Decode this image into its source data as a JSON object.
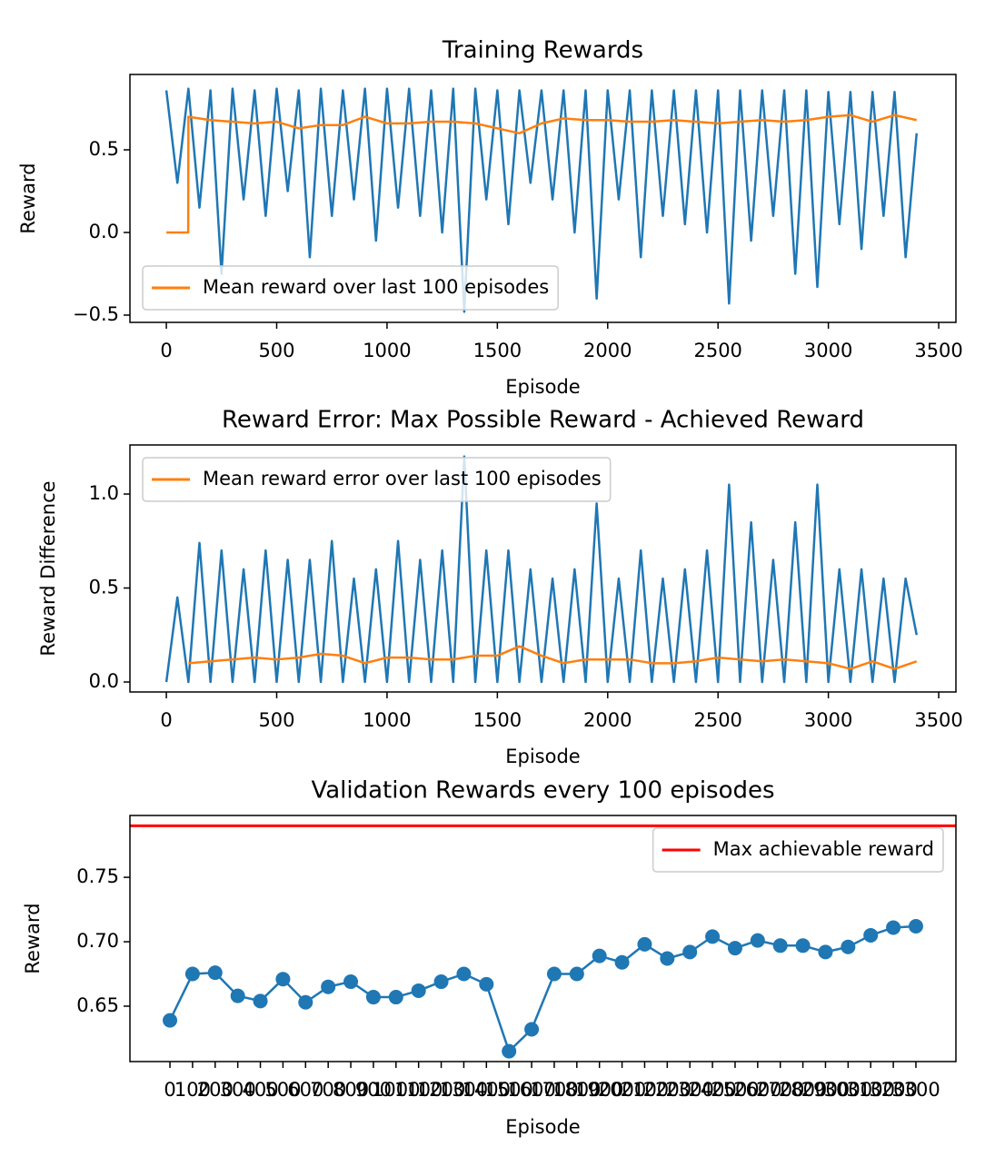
{
  "chart_data": [
    {
      "type": "line",
      "title": "Training Rewards",
      "xlabel": "Episode",
      "ylabel": "Reward",
      "xlim": [
        -165,
        3578
      ],
      "xticks": [
        0,
        500,
        1000,
        1500,
        2000,
        2500,
        3000,
        3500
      ],
      "ylim": [
        -0.544,
        0.956
      ],
      "yticks": [
        {
          "value": -0.5,
          "label": "−0.5"
        },
        {
          "value": 0,
          "label": "0.0"
        },
        0.5
      ],
      "legend": "lower left",
      "series": [
        {
          "color": "#1f77b4",
          "x": [
            0,
            50,
            100,
            150,
            200,
            250,
            300,
            350,
            400,
            450,
            500,
            550,
            600,
            650,
            700,
            750,
            800,
            850,
            900,
            950,
            1000,
            1050,
            1100,
            1150,
            1200,
            1250,
            1300,
            1350,
            1400,
            1450,
            1500,
            1550,
            1600,
            1650,
            1700,
            1750,
            1800,
            1850,
            1900,
            1950,
            2000,
            2050,
            2100,
            2150,
            2200,
            2250,
            2300,
            2350,
            2400,
            2450,
            2500,
            2550,
            2600,
            2650,
            2700,
            2750,
            2800,
            2850,
            2900,
            2950,
            3000,
            3050,
            3100,
            3150,
            3200,
            3250,
            3300,
            3350,
            3400
          ],
          "values": [
            0.86,
            0.3,
            0.87,
            0.15,
            0.86,
            -0.25,
            0.87,
            0.2,
            0.86,
            0.1,
            0.87,
            0.25,
            0.86,
            -0.15,
            0.87,
            0.1,
            0.86,
            0.2,
            0.87,
            -0.05,
            0.87,
            0.15,
            0.87,
            0.1,
            0.86,
            0.0,
            0.87,
            -0.48,
            0.87,
            0.2,
            0.86,
            0.05,
            0.86,
            0.3,
            0.86,
            0.2,
            0.86,
            0.0,
            0.86,
            -0.4,
            0.86,
            0.2,
            0.86,
            -0.15,
            0.86,
            0.1,
            0.86,
            0.05,
            0.86,
            0.0,
            0.86,
            -0.43,
            0.86,
            -0.05,
            0.86,
            0.1,
            0.86,
            -0.25,
            0.86,
            -0.33,
            0.85,
            0.05,
            0.85,
            -0.1,
            0.85,
            0.1,
            0.85,
            -0.15,
            0.6
          ]
        },
        {
          "name": "Mean reward over last 100 episodes",
          "color": "#ff7f0e",
          "x": [
            0,
            99,
            100,
            200,
            300,
            400,
            500,
            600,
            700,
            800,
            900,
            1000,
            1100,
            1200,
            1300,
            1400,
            1500,
            1600,
            1700,
            1800,
            1900,
            2000,
            2100,
            2200,
            2300,
            2400,
            2500,
            2600,
            2700,
            2800,
            2900,
            3000,
            3100,
            3200,
            3300,
            3400
          ],
          "values": [
            0,
            0,
            0.7,
            0.68,
            0.67,
            0.66,
            0.67,
            0.63,
            0.65,
            0.65,
            0.7,
            0.66,
            0.66,
            0.67,
            0.67,
            0.66,
            0.63,
            0.6,
            0.66,
            0.69,
            0.68,
            0.68,
            0.67,
            0.67,
            0.68,
            0.67,
            0.66,
            0.67,
            0.68,
            0.67,
            0.68,
            0.7,
            0.71,
            0.67,
            0.71,
            0.68
          ]
        }
      ]
    },
    {
      "type": "line",
      "title": "Reward Error: Max Possible Reward - Achieved Reward",
      "xlabel": "Episode",
      "ylabel": "Reward Difference",
      "xlim": [
        -165,
        3578
      ],
      "xticks": [
        0,
        500,
        1000,
        1500,
        2000,
        2500,
        3000,
        3500
      ],
      "ylim": [
        -0.053,
        1.261
      ],
      "yticks": [
        {
          "value": 0,
          "label": "0.0"
        },
        0.5,
        {
          "value": 1,
          "label": "1.0"
        }
      ],
      "legend": "upper left",
      "series": [
        {
          "color": "#1f77b4",
          "x": [
            0,
            50,
            100,
            150,
            200,
            250,
            300,
            350,
            400,
            450,
            500,
            550,
            600,
            650,
            700,
            750,
            800,
            850,
            900,
            950,
            1000,
            1050,
            1100,
            1150,
            1200,
            1250,
            1300,
            1350,
            1400,
            1450,
            1500,
            1550,
            1600,
            1650,
            1700,
            1750,
            1800,
            1850,
            1900,
            1950,
            2000,
            2050,
            2100,
            2150,
            2200,
            2250,
            2300,
            2350,
            2400,
            2450,
            2500,
            2550,
            2600,
            2650,
            2700,
            2750,
            2800,
            2850,
            2900,
            2950,
            3000,
            3050,
            3100,
            3150,
            3200,
            3250,
            3300,
            3350,
            3400
          ],
          "values": [
            0,
            0.45,
            0,
            0.74,
            0,
            0.7,
            0,
            0.6,
            0,
            0.7,
            0,
            0.65,
            0,
            0.65,
            0,
            0.75,
            0,
            0.55,
            0,
            0.6,
            0,
            0.75,
            0,
            0.65,
            0,
            0.7,
            0,
            1.2,
            0,
            0.7,
            0,
            0.7,
            0,
            0.6,
            0,
            0.55,
            0,
            0.6,
            0,
            0.95,
            0,
            0.55,
            0,
            0.7,
            0,
            0.55,
            0,
            0.6,
            0,
            0.7,
            0,
            1.05,
            0,
            0.85,
            0,
            0.65,
            0,
            0.85,
            0,
            1.05,
            0,
            0.6,
            0,
            0.6,
            0,
            0.55,
            0,
            0.55,
            0.25
          ]
        },
        {
          "name": "Mean reward error over last 100 episodes",
          "color": "#ff7f0e",
          "x": [
            100,
            200,
            300,
            400,
            500,
            600,
            700,
            800,
            900,
            1000,
            1100,
            1200,
            1300,
            1400,
            1500,
            1600,
            1700,
            1800,
            1900,
            2000,
            2100,
            2200,
            2300,
            2400,
            2500,
            2600,
            2700,
            2800,
            2900,
            3000,
            3100,
            3200,
            3300,
            3400
          ],
          "values": [
            0.1,
            0.11,
            0.12,
            0.13,
            0.12,
            0.13,
            0.15,
            0.14,
            0.1,
            0.13,
            0.13,
            0.12,
            0.12,
            0.14,
            0.14,
            0.19,
            0.14,
            0.1,
            0.12,
            0.12,
            0.12,
            0.1,
            0.1,
            0.11,
            0.13,
            0.12,
            0.11,
            0.12,
            0.11,
            0.1,
            0.07,
            0.11,
            0.07,
            0.11
          ]
        }
      ]
    },
    {
      "type": "line",
      "title": "Validation Rewards every 100 episodes",
      "xlabel": "Episode",
      "ylabel": "Reward",
      "categories": [
        "0",
        "100",
        "200",
        "300",
        "400",
        "500",
        "600",
        "700",
        "800",
        "900",
        "1000",
        "1100",
        "1200",
        "1300",
        "1400",
        "1500",
        "1600",
        "1700",
        "1800",
        "1900",
        "2000",
        "2100",
        "2200",
        "2300",
        "2400",
        "2500",
        "2600",
        "2700",
        "2800",
        "2900",
        "3000",
        "3100",
        "3200",
        "3300"
      ],
      "ylim": [
        0.607,
        0.798
      ],
      "yticks": [
        0.65,
        {
          "value": 0.7,
          "label": "0.70"
        },
        0.75
      ],
      "legend": "upper right",
      "marker": "o",
      "hlines": [
        {
          "value": 0.79,
          "name": "Max achievable reward",
          "color": "#ff0000"
        }
      ],
      "series": [
        {
          "color": "#1f77b4",
          "values": [
            0.639,
            0.675,
            0.676,
            0.658,
            0.654,
            0.671,
            0.653,
            0.665,
            0.669,
            0.657,
            0.657,
            0.662,
            0.669,
            0.675,
            0.667,
            0.615,
            0.632,
            0.675,
            0.675,
            0.689,
            0.684,
            0.698,
            0.687,
            0.692,
            0.704,
            0.695,
            0.701,
            0.697,
            0.697,
            0.692,
            0.696,
            0.705,
            0.711,
            0.712
          ]
        }
      ]
    }
  ]
}
